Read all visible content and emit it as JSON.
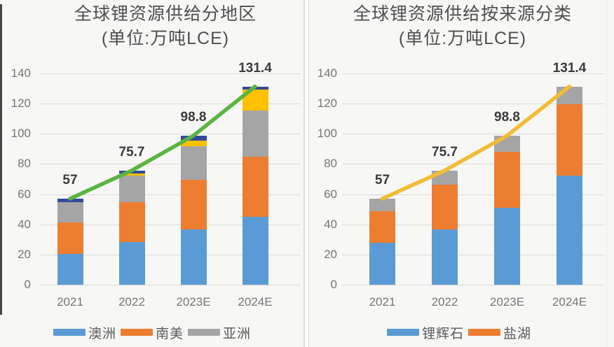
{
  "page": {
    "background": "#f7f7f5"
  },
  "chart_data": [
    {
      "type": "stacked-bar-with-total-line",
      "title": "全球锂资源供给分地区",
      "subtitle": "(单位:万吨LCE)",
      "categories": [
        "2021",
        "2022",
        "2023E",
        "2024E"
      ],
      "y_ticks": [
        0,
        20,
        40,
        60,
        80,
        100,
        120,
        140
      ],
      "ylim": [
        0,
        140
      ],
      "grid": true,
      "legend_position": "bottom",
      "series": [
        {
          "name": "澳洲",
          "color": "#5B9BD5",
          "in_legend": true,
          "values": [
            20.5,
            28.4,
            36.8,
            45.0
          ]
        },
        {
          "name": "南美",
          "color": "#ED7D31",
          "in_legend": true,
          "values": [
            20.9,
            26.3,
            32.6,
            39.8
          ]
        },
        {
          "name": "亚洲",
          "color": "#A5A5A5",
          "in_legend": true,
          "values": [
            13.3,
            17.6,
            22.2,
            30.5
          ]
        },
        {
          "name": "unlabeled-yellow",
          "color": "#FFC000",
          "in_legend": false,
          "values": [
            0,
            1.2,
            4.0,
            14.0
          ]
        },
        {
          "name": "unlabeled-navy",
          "color": "#33499B",
          "in_legend": false,
          "values": [
            2.3,
            2.2,
            3.2,
            2.1
          ]
        }
      ],
      "line": {
        "name": "total-line",
        "color": "#5BB442",
        "values": [
          57,
          75.7,
          98.8,
          131.4
        ]
      },
      "total_labels": [
        "57",
        "75.7",
        "98.8",
        "131.4"
      ]
    },
    {
      "type": "stacked-bar-with-total-line",
      "title": "全球锂资源供给按来源分类",
      "subtitle": "(单位:万吨LCE)",
      "categories": [
        "2021",
        "2022",
        "2023E",
        "2024E"
      ],
      "y_ticks": [
        0,
        20,
        40,
        60,
        80,
        100,
        120,
        140
      ],
      "ylim": [
        0,
        140
      ],
      "grid": true,
      "legend_position": "bottom",
      "series": [
        {
          "name": "锂辉石",
          "color": "#5B9BD5",
          "in_legend": true,
          "values": [
            28.0,
            36.7,
            51.0,
            72.1
          ]
        },
        {
          "name": "盐湖",
          "color": "#ED7D31",
          "in_legend": true,
          "values": [
            20.5,
            29.5,
            36.9,
            47.3
          ]
        },
        {
          "name": "unlabeled-gray",
          "color": "#A5A5A5",
          "in_legend": false,
          "values": [
            8.5,
            9.5,
            10.9,
            12.0
          ]
        }
      ],
      "line": {
        "name": "total-line",
        "color": "#F2BC35",
        "values": [
          57,
          75.7,
          98.8,
          131.4
        ]
      },
      "total_labels": [
        "57",
        "75.7",
        "98.8",
        "131.4"
      ]
    }
  ]
}
